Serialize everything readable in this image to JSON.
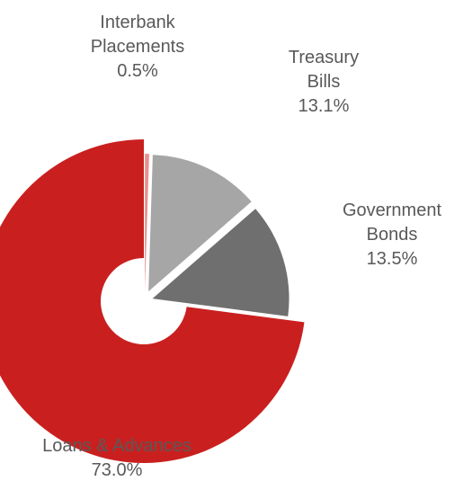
{
  "chart_data": {
    "type": "pie",
    "variant": "donut",
    "title": "",
    "exploded": true,
    "slices": [
      {
        "name": "Interbank Placements",
        "label_lines": [
          "Interbank",
          "Placements"
        ],
        "value": 0.5,
        "value_label": "0.5%",
        "color": "#e8908c"
      },
      {
        "name": "Treasury Bills",
        "label_lines": [
          "Treasury",
          "Bills"
        ],
        "value": 13.1,
        "value_label": "13.1%",
        "color": "#a6a6a6"
      },
      {
        "name": "Government Bonds",
        "label_lines": [
          "Government",
          "Bonds"
        ],
        "value": 13.5,
        "value_label": "13.5%",
        "color": "#6f6f6f"
      },
      {
        "name": "Loans & Advances",
        "label_lines": [
          "Loans & Advances"
        ],
        "value": 73.0,
        "value_label": "73.0%",
        "color": "#c9201f"
      }
    ]
  }
}
